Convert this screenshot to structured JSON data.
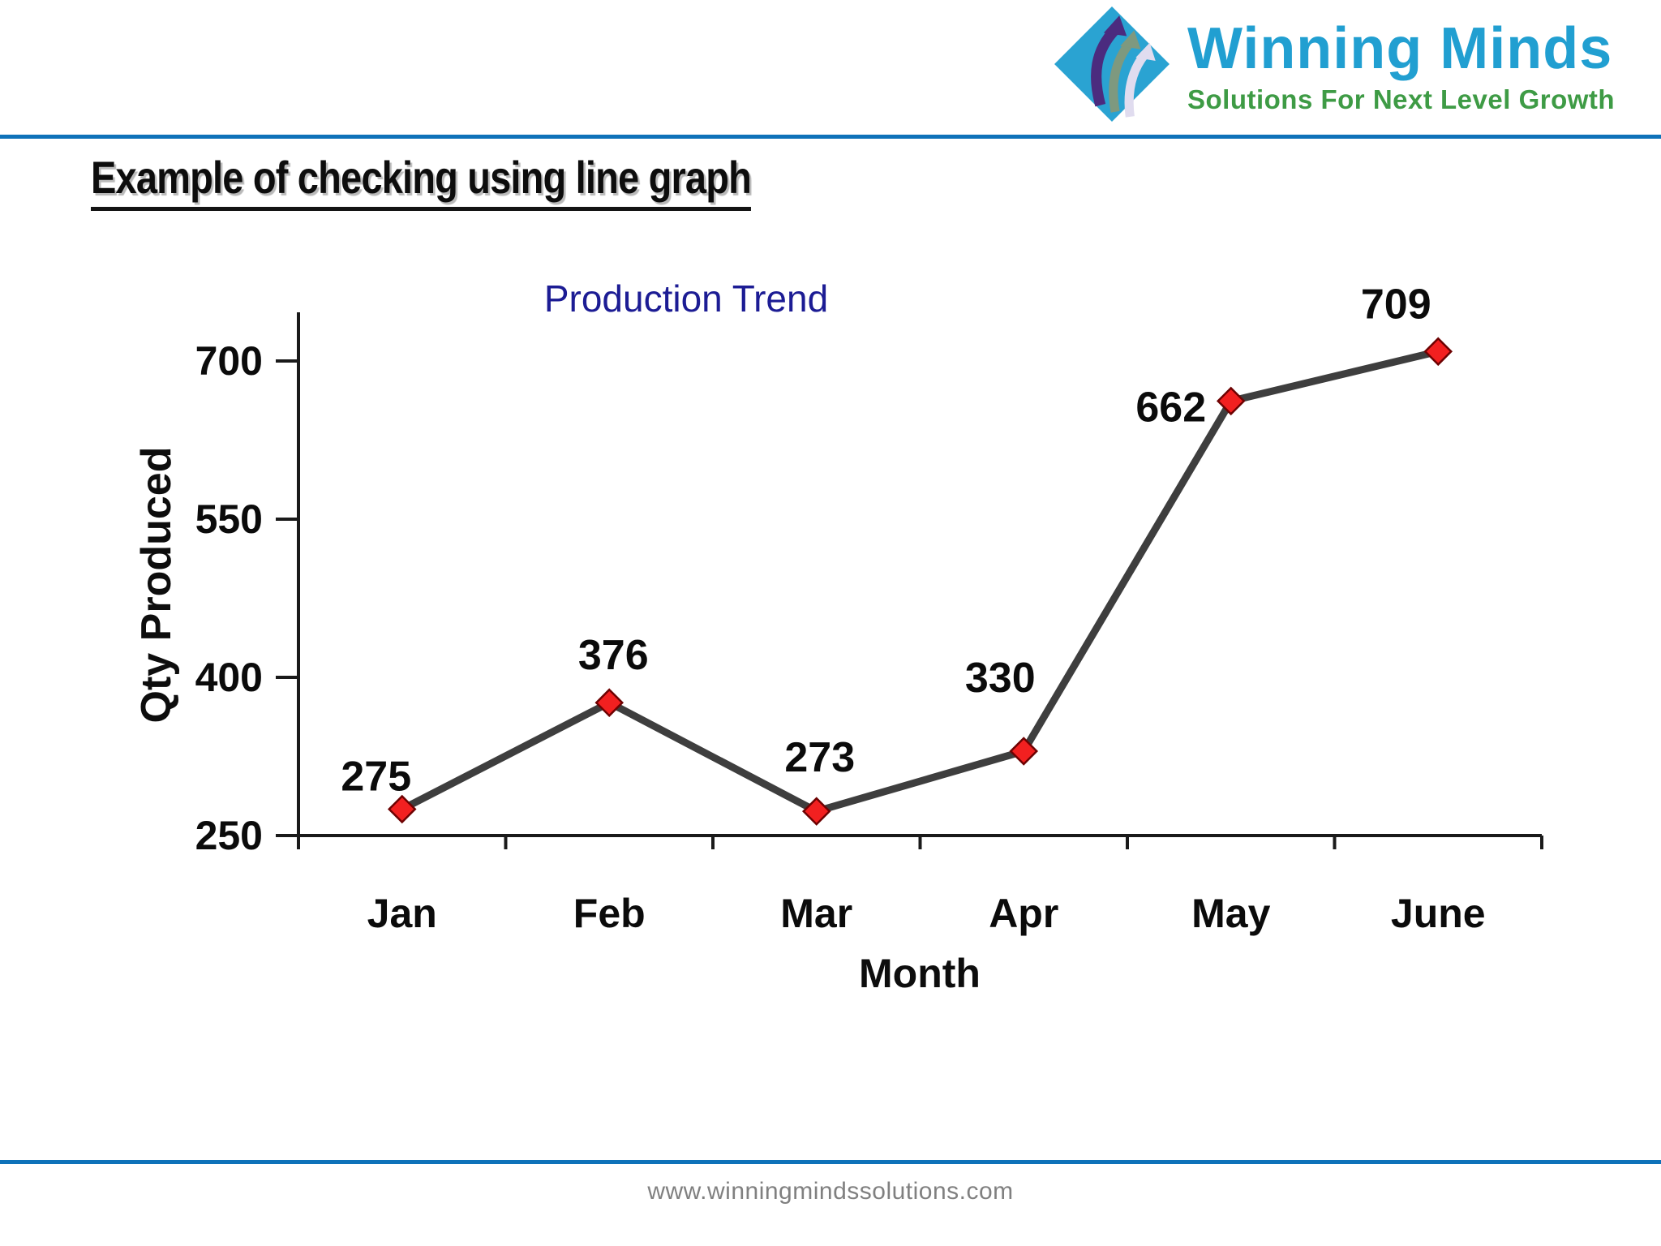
{
  "header": {
    "logo": {
      "brand": "Winning Minds",
      "tagline": "Solutions For Next Level Growth",
      "brand_color": "#219fd1",
      "tagline_color": "#3e9b45",
      "diamond_color": "#2aa3d2",
      "arrow_colors": [
        "#4b2b7f",
        "#7e997f",
        "#e0dcef"
      ]
    },
    "divider_color": "#0e72b9"
  },
  "slide": {
    "title": "Example of checking using line graph"
  },
  "chart_data": {
    "type": "line",
    "title": "Production Trend",
    "title_color": "#1c1c94",
    "xlabel": "Month",
    "ylabel": "Qty Produced",
    "categories": [
      "Jan",
      "Feb",
      "Mar",
      "Apr",
      "May",
      "June"
    ],
    "series": [
      {
        "name": "Qty Produced",
        "values": [
          275,
          376,
          273,
          330,
          662,
          709
        ]
      }
    ],
    "yticks": [
      250,
      400,
      550,
      700
    ],
    "ylim": [
      250,
      740
    ],
    "grid": false,
    "legend": false,
    "line_color": "#3e3e3e",
    "marker": "diamond",
    "marker_fill": "#f22020",
    "marker_stroke": "#6d0202",
    "axis_color": "#1a1a1a",
    "label_color": "#0b0b0b"
  },
  "footer": {
    "url": "www.winningmindssolutions.com",
    "divider_color": "#0e72b9",
    "text_color": "#808080"
  }
}
